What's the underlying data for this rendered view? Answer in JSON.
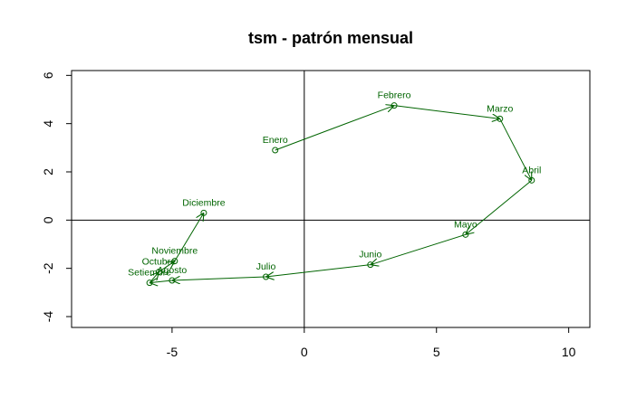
{
  "chart_data": {
    "type": "line",
    "title": "tsm - patrón mensual",
    "xlabel": "",
    "ylabel": "",
    "xlim": [
      -8.8,
      10.8
    ],
    "ylim": [
      -4.45,
      6.2
    ],
    "xticks": [
      -5,
      0,
      5,
      10
    ],
    "yticks": [
      -4,
      -2,
      0,
      2,
      4,
      6
    ],
    "color": "#006400",
    "reference_lines": {
      "x": 0,
      "y": 0
    },
    "grid": false,
    "arrows": true,
    "points": [
      {
        "label": "Enero",
        "x": -1.1,
        "y": 2.9
      },
      {
        "label": "Febrero",
        "x": 3.4,
        "y": 4.75
      },
      {
        "label": "Marzo",
        "x": 7.4,
        "y": 4.2
      },
      {
        "label": "Abril",
        "x": 8.6,
        "y": 1.65
      },
      {
        "label": "Mayo",
        "x": 6.1,
        "y": -0.6
      },
      {
        "label": "Junio",
        "x": 2.5,
        "y": -1.85
      },
      {
        "label": "Julio",
        "x": -1.45,
        "y": -2.35
      },
      {
        "label": "Agosto",
        "x": -5.0,
        "y": -2.5
      },
      {
        "label": "Setiembre",
        "x": -5.85,
        "y": -2.6
      },
      {
        "label": "Octubre",
        "x": -5.5,
        "y": -2.15
      },
      {
        "label": "Noviembre",
        "x": -4.9,
        "y": -1.7
      },
      {
        "label": "Diciembre",
        "x": -3.8,
        "y": 0.3
      }
    ]
  }
}
